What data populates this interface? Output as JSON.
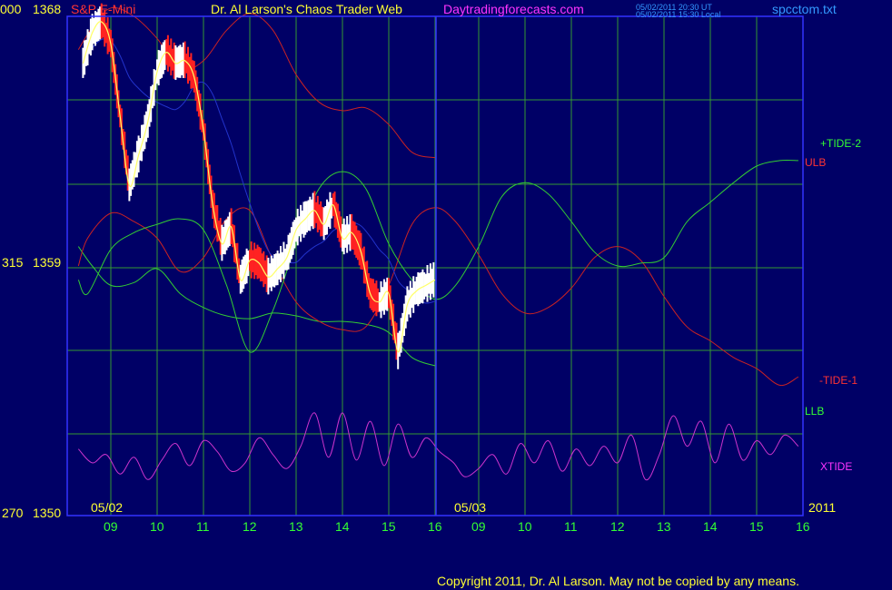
{
  "header": {
    "left_code": "000",
    "left_price": "1368",
    "instrument": "S&P E-Mini",
    "title": "Dr. Al Larson's Chaos Trader Web",
    "site": "Daytradingforecasts.com",
    "stamp_ut": "05/02/2011 20:30 UT",
    "stamp_local": "05/02/2011 15:30 Local",
    "file": "spcctom.txt"
  },
  "y_axis": {
    "mid_code": "315",
    "mid_price": "1359",
    "bottom_code": "270",
    "bottom_price": "1350"
  },
  "date_labels": [
    "05/02",
    "05/03",
    "2011"
  ],
  "hour_ticks": [
    "09",
    "10",
    "11",
    "12",
    "13",
    "14",
    "15",
    "16",
    "09",
    "10",
    "11",
    "12",
    "13",
    "14",
    "15",
    "16"
  ],
  "legend": {
    "tide2": "+TIDE-2",
    "ulb": "ULB",
    "tide1": "-TIDE-1",
    "llb": "LLB",
    "xtide": "XTIDE"
  },
  "copyright": "Copyright 2011, Dr. Al Larson. May not be copied by any means.",
  "colors": {
    "background": "#000066",
    "grid": "#339933",
    "frame": "#3333ff",
    "price_up": "#ffffff",
    "price_down": "#ff2222",
    "tide2": "#33cc33",
    "tide1": "#cc2222",
    "xtide": "#cc33cc",
    "average": "#ffff66",
    "slow_average": "#2233cc"
  },
  "chart_data": {
    "type": "line",
    "y_price_range": [
      1350,
      1368
    ],
    "x_sessions": [
      "05/02",
      "05/03"
    ],
    "x_hours": [
      9,
      10,
      11,
      12,
      13,
      14,
      15,
      16
    ],
    "price": {
      "t": [
        8.4,
        8.6,
        8.8,
        9.0,
        9.2,
        9.4,
        9.6,
        9.8,
        10.0,
        10.2,
        10.4,
        10.6,
        10.8,
        11.0,
        11.2,
        11.4,
        11.6,
        11.8,
        12.0,
        12.2,
        12.4,
        12.6,
        12.8,
        13.0,
        13.2,
        13.4,
        13.6,
        13.8,
        14.0,
        14.2,
        14.4,
        14.6,
        14.8,
        15.0,
        15.2,
        15.4,
        15.6,
        15.8,
        16.0
      ],
      "v": [
        1366.3,
        1367.4,
        1367.8,
        1367.0,
        1364.4,
        1361.9,
        1363.0,
        1364.2,
        1366.0,
        1366.7,
        1366.3,
        1366.4,
        1365.8,
        1363.9,
        1361.2,
        1359.8,
        1360.4,
        1358.5,
        1359.2,
        1359.1,
        1358.6,
        1358.9,
        1359.3,
        1360.3,
        1360.7,
        1361.0,
        1360.5,
        1361.2,
        1360.0,
        1360.2,
        1359.5,
        1358.0,
        1357.7,
        1358.0,
        1355.9,
        1357.6,
        1358.1,
        1358.3,
        1358.5
      ]
    },
    "tide2": {
      "t": [
        8.3,
        8.5,
        9.0,
        9.5,
        10.0,
        10.5,
        11.0,
        11.5,
        12.0,
        12.5,
        13.0,
        13.5,
        14.0,
        14.5,
        15.0,
        15.5,
        16.0,
        16.5,
        17.0,
        17.5,
        18.0,
        18.5,
        19.0,
        19.5,
        20.0,
        20.5,
        21.0,
        21.5,
        22.0,
        22.5,
        23.0,
        23.5,
        23.9
      ],
      "v": [
        1358.5,
        1358.0,
        1359.6,
        1360.2,
        1360.5,
        1360.7,
        1360.3,
        1358.3,
        1355.9,
        1357.4,
        1359.8,
        1361.8,
        1362.4,
        1361.8,
        1359.8,
        1358.5,
        1357.8,
        1358.3,
        1359.7,
        1361.5,
        1362.0,
        1361.6,
        1360.6,
        1359.5,
        1359.0,
        1359.1,
        1359.3,
        1360.6,
        1361.3,
        1362.0,
        1362.6,
        1362.8,
        1362.8
      ]
    },
    "tide1": {
      "t": [
        8.3,
        8.5,
        9.0,
        9.5,
        10.0,
        10.5,
        11.0,
        11.5,
        12.0,
        12.5,
        13.0,
        13.5,
        14.0,
        14.5,
        15.0,
        15.5,
        16.0,
        16.5,
        17.0,
        17.5,
        18.0,
        18.5,
        19.0,
        19.5,
        20.0,
        20.5,
        21.0,
        21.5,
        22.0,
        22.5,
        23.0,
        23.5,
        23.9
      ],
      "v": [
        1359.0,
        1360.0,
        1360.9,
        1360.6,
        1360.0,
        1358.8,
        1359.3,
        1360.7,
        1361.0,
        1359.2,
        1357.7,
        1357.0,
        1356.7,
        1356.8,
        1358.3,
        1360.5,
        1361.1,
        1360.6,
        1359.4,
        1358.0,
        1357.3,
        1357.5,
        1358.2,
        1359.3,
        1359.7,
        1359.2,
        1357.9,
        1356.8,
        1356.3,
        1355.7,
        1355.3,
        1354.7,
        1355.0
      ]
    },
    "ulb": {
      "t": [
        8.3,
        8.6,
        9.0,
        9.5,
        10.0,
        10.5,
        11.0,
        11.5,
        12.0,
        12.5,
        13.0,
        13.5,
        14.0,
        14.5,
        15.0,
        15.5,
        16.0
      ],
      "v": [
        1366.8,
        1367.6,
        1368.3,
        1368.0,
        1367.2,
        1366.1,
        1366.4,
        1367.5,
        1368.1,
        1367.5,
        1365.9,
        1364.9,
        1364.6,
        1364.7,
        1364.1,
        1363.1,
        1362.9
      ]
    },
    "llb": {
      "t": [
        8.3,
        8.6,
        9.0,
        9.5,
        10.0,
        10.5,
        11.0,
        11.5,
        12.0,
        12.5,
        13.0,
        13.5,
        14.0,
        14.5,
        15.0,
        15.5,
        16.0
      ],
      "v": [
        1359.7,
        1359.0,
        1358.3,
        1358.4,
        1358.9,
        1358.0,
        1357.5,
        1357.2,
        1357.1,
        1357.3,
        1357.2,
        1357.0,
        1357.0,
        1356.9,
        1356.6,
        1355.7,
        1355.4
      ]
    },
    "xtide": {
      "t": [
        8.3,
        8.6,
        8.9,
        9.2,
        9.5,
        9.8,
        10.1,
        10.4,
        10.7,
        11.0,
        11.3,
        11.6,
        11.9,
        12.2,
        12.5,
        12.8,
        13.1,
        13.4,
        13.7,
        14.0,
        14.3,
        14.6,
        14.9,
        15.2,
        15.5,
        15.8,
        16.1,
        16.4,
        16.7,
        17.0,
        17.3,
        17.6,
        17.9,
        18.2,
        18.5,
        18.8,
        19.1,
        19.4,
        19.7,
        20.0,
        20.3,
        20.6,
        20.9,
        21.2,
        21.5,
        21.8,
        22.1,
        22.4,
        22.7,
        23.0,
        23.3,
        23.6,
        23.9
      ],
      "v": [
        1352.4,
        1351.9,
        1352.2,
        1351.5,
        1352.1,
        1351.3,
        1352.0,
        1352.6,
        1351.8,
        1352.7,
        1352.3,
        1351.6,
        1351.9,
        1352.8,
        1352.2,
        1351.7,
        1352.5,
        1353.7,
        1352.1,
        1353.7,
        1352.0,
        1353.4,
        1351.8,
        1353.3,
        1352.1,
        1352.8,
        1352.3,
        1351.9,
        1351.4,
        1351.7,
        1352.2,
        1351.5,
        1352.6,
        1351.9,
        1352.7,
        1351.6,
        1352.4,
        1351.8,
        1352.5,
        1351.9,
        1352.9,
        1351.3,
        1352.2,
        1353.6,
        1352.5,
        1353.4,
        1351.9,
        1353.3,
        1352.0,
        1352.7,
        1352.2,
        1352.9,
        1352.5
      ]
    }
  }
}
